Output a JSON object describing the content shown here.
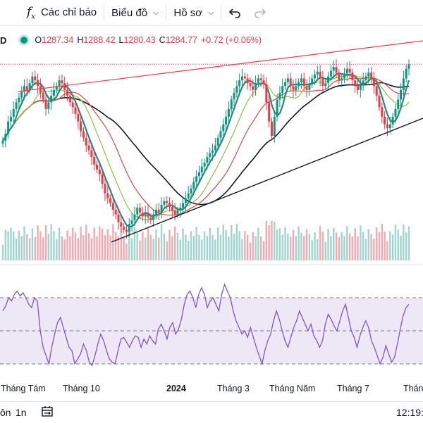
{
  "toolbar": {
    "indicators_label": "Các chỉ báo",
    "chart_type_label": "Biểu đồ",
    "profile_label": "Hồ sơ",
    "indicators_icon": "function-fx-icon",
    "undo_icon": "undo-icon",
    "redo_icon": "redo-icon"
  },
  "legend": {
    "symbol_fragment": "D",
    "open_label": "O",
    "open_value": "1287.34",
    "high_label": "H",
    "high_value": "1288.42",
    "low_label": "L",
    "low_value": "1280.43",
    "close_label": "C",
    "close_value": "1284.77",
    "change": "+0.72 (+0.06%)"
  },
  "bottom_bar": {
    "range_partial": "ôn",
    "range_1m": "1n",
    "time": "12:19:",
    "date_range_icon": "calendar-range-icon"
  },
  "colors": {
    "up": "#089981",
    "down": "#f23645",
    "ma_teal": "#26897a",
    "ma_green": "#8bc34a",
    "ma_red": "#e0464a",
    "ma_black": "#131722",
    "rsi": "#7e57c2",
    "rsi_band": "#ede7f6",
    "trend_top": "#f23645",
    "trend_bottom": "#131722"
  },
  "chart_data": {
    "type": "candlestick",
    "x_labels": [
      "Tháng Tám",
      "Tháng 10",
      "2024",
      "Tháng 3",
      "Tháng Năm",
      "Tháng 7",
      "Thán"
    ],
    "close": [
      1205,
      1212,
      1225,
      1230,
      1238,
      1245,
      1250,
      1256,
      1262,
      1258,
      1265,
      1272,
      1268,
      1262,
      1255,
      1248,
      1238,
      1245,
      1252,
      1258,
      1262,
      1268,
      1265,
      1258,
      1252,
      1245,
      1240,
      1233,
      1225,
      1215,
      1208,
      1200,
      1195,
      1188,
      1180,
      1175,
      1170,
      1160,
      1150,
      1145,
      1140,
      1133,
      1128,
      1120,
      1115,
      1112,
      1110,
      1118,
      1122,
      1128,
      1135,
      1130,
      1126,
      1130,
      1125,
      1122,
      1128,
      1133,
      1130,
      1138,
      1142,
      1140,
      1136,
      1132,
      1128,
      1132,
      1135,
      1140,
      1145,
      1150,
      1155,
      1162,
      1168,
      1172,
      1178,
      1182,
      1188,
      1192,
      1195,
      1200,
      1208,
      1215,
      1222,
      1230,
      1238,
      1248,
      1255,
      1262,
      1268,
      1272,
      1270,
      1265,
      1262,
      1258,
      1265,
      1270,
      1268,
      1264,
      1245,
      1225,
      1210,
      1230,
      1248,
      1255,
      1262,
      1266,
      1270,
      1262,
      1258,
      1262,
      1266,
      1270,
      1262,
      1258,
      1264,
      1270,
      1274,
      1277,
      1270,
      1262,
      1265,
      1272,
      1278,
      1282,
      1276,
      1268,
      1270,
      1275,
      1280,
      1276,
      1268,
      1262,
      1258,
      1263,
      1268,
      1272,
      1276,
      1270,
      1262,
      1252,
      1240,
      1230,
      1222,
      1218,
      1222,
      1230,
      1238,
      1248,
      1258,
      1270,
      1280,
      1284.77
    ],
    "rsi_levels": [
      70,
      50,
      30
    ],
    "rsi_values": [
      62,
      65,
      70,
      68,
      72,
      74,
      71,
      73,
      70,
      66,
      64,
      70,
      68,
      50,
      40,
      35,
      30,
      40,
      48,
      55,
      58,
      52,
      46,
      40,
      38,
      30,
      33,
      36,
      42,
      38,
      31,
      29,
      35,
      42,
      48,
      44,
      38,
      33,
      31,
      30,
      38,
      45,
      46,
      43,
      40,
      44,
      47,
      46,
      40,
      45,
      42,
      47,
      44,
      42,
      51,
      54,
      50,
      45,
      52,
      55,
      48,
      51,
      57,
      66,
      72,
      74,
      70,
      64,
      72,
      76,
      72,
      64,
      68,
      70,
      66,
      62,
      72,
      78,
      74,
      70,
      62,
      56,
      52,
      48,
      50,
      46,
      52,
      46,
      40,
      35,
      30,
      38,
      44,
      48,
      56,
      62,
      57,
      50,
      44,
      40,
      46,
      52,
      56,
      62,
      58,
      54,
      50,
      54,
      47,
      44,
      40,
      44,
      54,
      60,
      57,
      53,
      50,
      56,
      62,
      66,
      58,
      50,
      46,
      40,
      47,
      52,
      56,
      52,
      44,
      40,
      35,
      30,
      34,
      41,
      36,
      31,
      34,
      42,
      51,
      59,
      64,
      66
    ]
  }
}
